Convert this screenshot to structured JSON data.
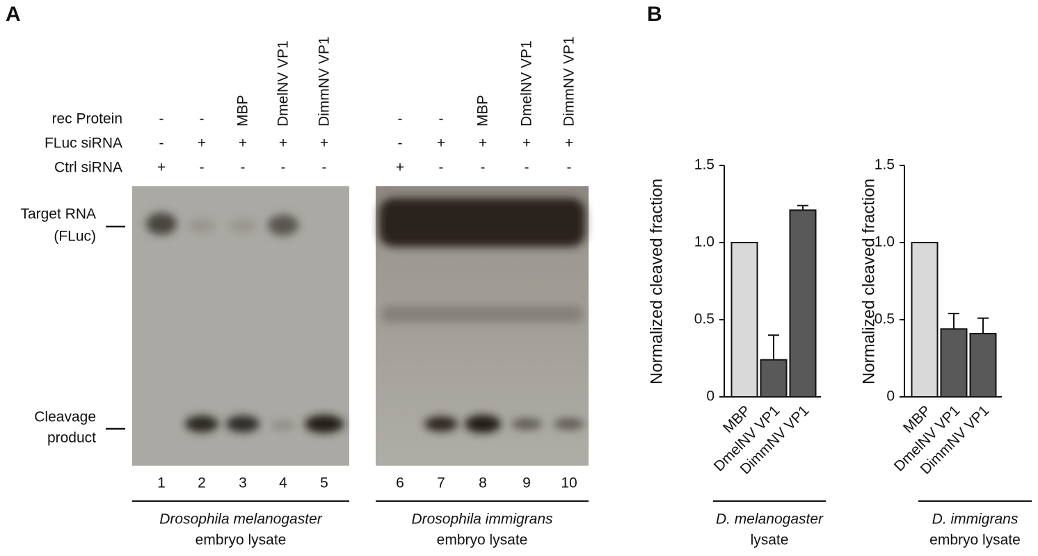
{
  "panels": [
    "A",
    "B"
  ],
  "gel": {
    "row_labels": [
      "rec Protein",
      "FLuc siRNA",
      "Ctrl siRNA"
    ],
    "lanes": [
      {
        "rec_protein": "-",
        "fluc_sirna": "-",
        "ctrl_sirna": "+",
        "number": 1
      },
      {
        "rec_protein": "-",
        "fluc_sirna": "+",
        "ctrl_sirna": "-",
        "number": 2
      },
      {
        "rec_protein": "MBP",
        "fluc_sirna": "+",
        "ctrl_sirna": "-",
        "number": 3
      },
      {
        "rec_protein": "DmelNV VP1",
        "fluc_sirna": "+",
        "ctrl_sirna": "-",
        "number": 4
      },
      {
        "rec_protein": "DimmNV VP1",
        "fluc_sirna": "+",
        "ctrl_sirna": "-",
        "number": 5
      },
      {
        "rec_protein": "-",
        "fluc_sirna": "-",
        "ctrl_sirna": "+",
        "number": 6
      },
      {
        "rec_protein": "-",
        "fluc_sirna": "+",
        "ctrl_sirna": "-",
        "number": 7
      },
      {
        "rec_protein": "MBP",
        "fluc_sirna": "+",
        "ctrl_sirna": "-",
        "number": 8
      },
      {
        "rec_protein": "DmelNV VP1",
        "fluc_sirna": "+",
        "ctrl_sirna": "-",
        "number": 9
      },
      {
        "rec_protein": "DimmNV VP1",
        "fluc_sirna": "+",
        "ctrl_sirna": "-",
        "number": 10
      }
    ],
    "markers": [
      [
        "Target RNA",
        "(FLuc)"
      ],
      [
        "Cleavage",
        "product"
      ]
    ],
    "groups": [
      {
        "species": "Drosophila melanogaster",
        "lysate": "embryo lysate"
      },
      {
        "species": "Drosophila immigrans",
        "lysate": "embryo lysate"
      }
    ]
  },
  "chart_data": [
    {
      "type": "bar",
      "ylabel": "Normalized cleaved fraction",
      "categories": [
        "MBP",
        "DmelNV VP1",
        "DimmNV VP1"
      ],
      "values": [
        1.0,
        0.24,
        1.21
      ],
      "errors": [
        null,
        0.16,
        0.03
      ],
      "colors": [
        "#d9d9d9",
        "#595959",
        "#595959"
      ],
      "ylim": [
        0,
        1.5
      ],
      "yticks": [
        0,
        0.5,
        {
          "value": 1.0,
          "label": "1.0"
        },
        1.5
      ],
      "footer": [
        "D. melanogaster",
        "lysate"
      ]
    },
    {
      "type": "bar",
      "ylabel": "Normalized cleaved fraction",
      "categories": [
        "MBP",
        "DmelNV VP1",
        "DimmNV VP1"
      ],
      "values": [
        1.0,
        0.44,
        0.41
      ],
      "errors": [
        null,
        0.1,
        0.1
      ],
      "colors": [
        "#d9d9d9",
        "#595959",
        "#595959"
      ],
      "ylim": [
        0,
        1.5
      ],
      "yticks": [
        0,
        0.5,
        {
          "value": 1.0,
          "label": "1.0"
        },
        1.5
      ],
      "footer": [
        "D. immigrans",
        "embryo lysate"
      ]
    }
  ]
}
